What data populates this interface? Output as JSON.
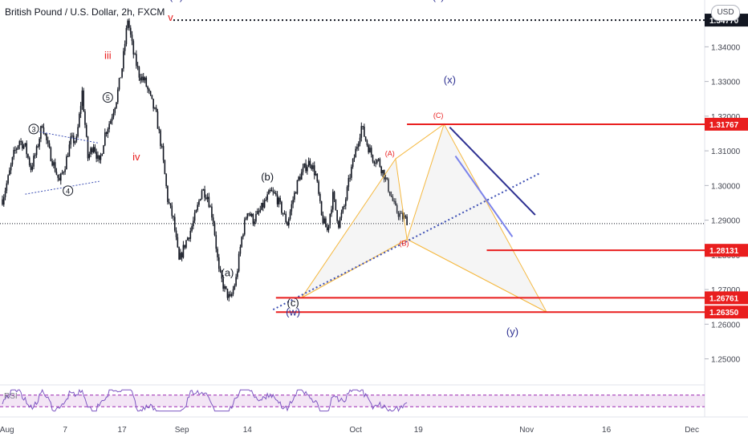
{
  "header": {
    "title": "British Pound / U.S. Dollar, 2h, FXCM",
    "currency_button": "USD"
  },
  "indicator": {
    "label": "RSI"
  },
  "chart_data": {
    "type": "candlestick",
    "symbol": "GBPUSD",
    "timeframe": "2h",
    "ylim": [
      1.2425,
      1.3535
    ],
    "y_ticks": [
      "1.25000",
      "1.26000",
      "1.27000",
      "1.28000",
      "1.29000",
      "1.30000",
      "1.31000",
      "1.32000",
      "1.33000",
      "1.34000"
    ],
    "x_ticks": [
      "Aug",
      "7",
      "17",
      "Sep",
      "14",
      "Oct",
      "19",
      "Nov",
      "16",
      "Dec"
    ],
    "x_tick_values": [
      0.8,
      11,
      21,
      31.5,
      43,
      62,
      73,
      92,
      106,
      121
    ],
    "price_path_days": [
      0,
      1,
      2,
      3,
      4,
      5,
      6,
      7,
      8,
      9,
      10,
      11,
      12,
      13,
      14,
      15,
      16,
      17,
      18,
      19,
      20,
      21,
      22,
      23,
      24,
      25,
      26,
      27,
      28,
      29,
      30,
      31,
      32,
      33,
      34,
      35,
      36,
      37,
      38,
      39,
      40,
      41,
      42,
      43,
      44,
      45,
      46,
      47,
      48,
      49,
      50,
      51,
      52,
      53,
      54,
      55,
      56,
      57,
      58,
      59,
      60,
      61,
      62,
      63,
      64,
      65,
      66,
      67,
      68,
      69,
      70,
      71,
      72,
      73,
      74,
      75,
      76,
      77,
      78,
      79,
      80,
      81,
      82,
      83,
      84,
      85,
      86,
      87,
      88,
      89,
      90,
      91,
      92
    ],
    "price_path_values": [
      1.296,
      1.302,
      1.309,
      1.313,
      1.311,
      1.305,
      1.31,
      1.318,
      1.311,
      1.306,
      1.301,
      1.306,
      1.313,
      1.313,
      1.327,
      1.308,
      1.312,
      1.306,
      1.315,
      1.319,
      1.325,
      1.334,
      1.348,
      1.338,
      1.332,
      1.33,
      1.325,
      1.32,
      1.31,
      1.296,
      1.29,
      1.278,
      1.283,
      1.287,
      1.292,
      1.299,
      1.297,
      1.29,
      1.275,
      1.27,
      1.267,
      1.273,
      1.285,
      1.293,
      1.29,
      1.292,
      1.295,
      1.298,
      1.297,
      1.293,
      1.289,
      1.296,
      1.302,
      1.305,
      1.307,
      1.303,
      1.291,
      1.287,
      1.297,
      1.289,
      1.294,
      1.303,
      1.31,
      1.317,
      1.312,
      1.308,
      1.307,
      1.303,
      1.298,
      1.293,
      1.291,
      1.29
    ],
    "price_path_end": 71,
    "last_price": "1.28900",
    "horizontal_levels": [
      {
        "value": 1.3477,
        "label": "1.34770",
        "style": "dotted-black"
      },
      {
        "value": 1.31767,
        "label": "1.31767",
        "style": "red"
      },
      {
        "value": 1.28131,
        "label": "1.28131",
        "style": "red"
      },
      {
        "value": 1.26761,
        "label": "1.26761",
        "style": "red"
      },
      {
        "value": 1.2635,
        "label": "1.26350",
        "style": "red"
      }
    ],
    "wave_labels": [
      {
        "text": "(iii)",
        "day": 30.5,
        "price": 1.3535,
        "color": "#2e3192"
      },
      {
        "text": "(v)",
        "day": 76.5,
        "price": 1.3535,
        "color": "#2e3192"
      },
      {
        "text": "v",
        "day": 29.5,
        "price": 1.3475,
        "color": "#e91e1e"
      },
      {
        "text": "iii",
        "day": 18.5,
        "price": 1.3365,
        "color": "#e91e1e"
      },
      {
        "text": "iv",
        "day": 23.5,
        "price": 1.3072,
        "color": "#e91e1e"
      },
      {
        "text": "(x)",
        "day": 78.5,
        "price": 1.3295,
        "color": "#2e3192"
      },
      {
        "text": "(C)",
        "day": 76.5,
        "price": 1.3195,
        "color": "#e91e1e"
      },
      {
        "text": "(A)",
        "day": 68,
        "price": 1.3085,
        "color": "#e91e1e"
      },
      {
        "text": "(B)",
        "day": 70.5,
        "price": 1.2826,
        "color": "#e91e1e"
      },
      {
        "text": "(b)",
        "day": 46.5,
        "price": 1.3015,
        "color": "#131722"
      },
      {
        "text": "(a)",
        "day": 39.5,
        "price": 1.2738,
        "color": "#131722"
      },
      {
        "text": "(c)",
        "day": 51,
        "price": 1.2652,
        "color": "#131722"
      },
      {
        "text": "(w)",
        "day": 51,
        "price": 1.2625,
        "color": "#2e3192"
      },
      {
        "text": "(y)",
        "day": 89.5,
        "price": 1.2568,
        "color": "#2e3192"
      }
    ],
    "circled_labels": [
      {
        "text": "3",
        "day": 5.5,
        "price": 1.3163
      },
      {
        "text": "4",
        "day": 11.5,
        "price": 1.2985
      },
      {
        "text": "5",
        "day": 18.5,
        "price": 1.3254
      }
    ],
    "harmonic_pattern": {
      "points_day": [
        52.5,
        69,
        71,
        77.5,
        95.5
      ],
      "points_price": [
        1.2676,
        1.3077,
        1.2845,
        1.3177,
        1.2635
      ]
    },
    "rsi": {
      "overbought": 70,
      "oversold": 30
    }
  }
}
